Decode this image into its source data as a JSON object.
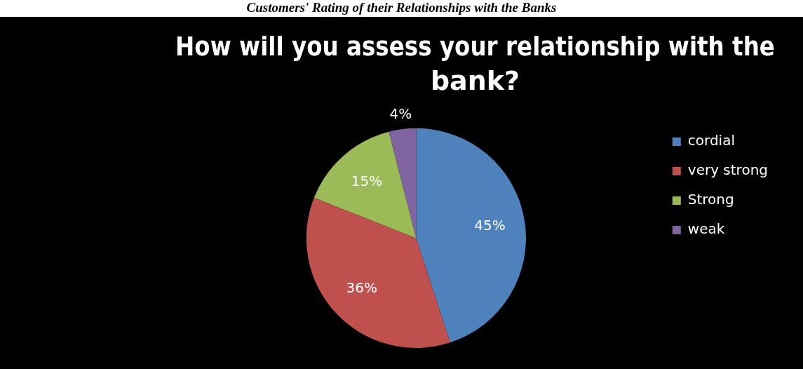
{
  "chart_data": {
    "type": "pie",
    "title": "How will you assess your relationship with the bank?",
    "annotations": [
      "Customers' Rating of their Relationships with the Banks"
    ],
    "categories": [
      "cordial",
      "very strong",
      "Strong",
      "weak"
    ],
    "values": [
      45,
      36,
      15,
      4
    ],
    "value_labels": [
      "45%",
      "36%",
      "15%",
      "4%"
    ],
    "colors": [
      "#4f81bd",
      "#c0504d",
      "#9bbb59",
      "#8064a2"
    ],
    "legend": "right"
  }
}
